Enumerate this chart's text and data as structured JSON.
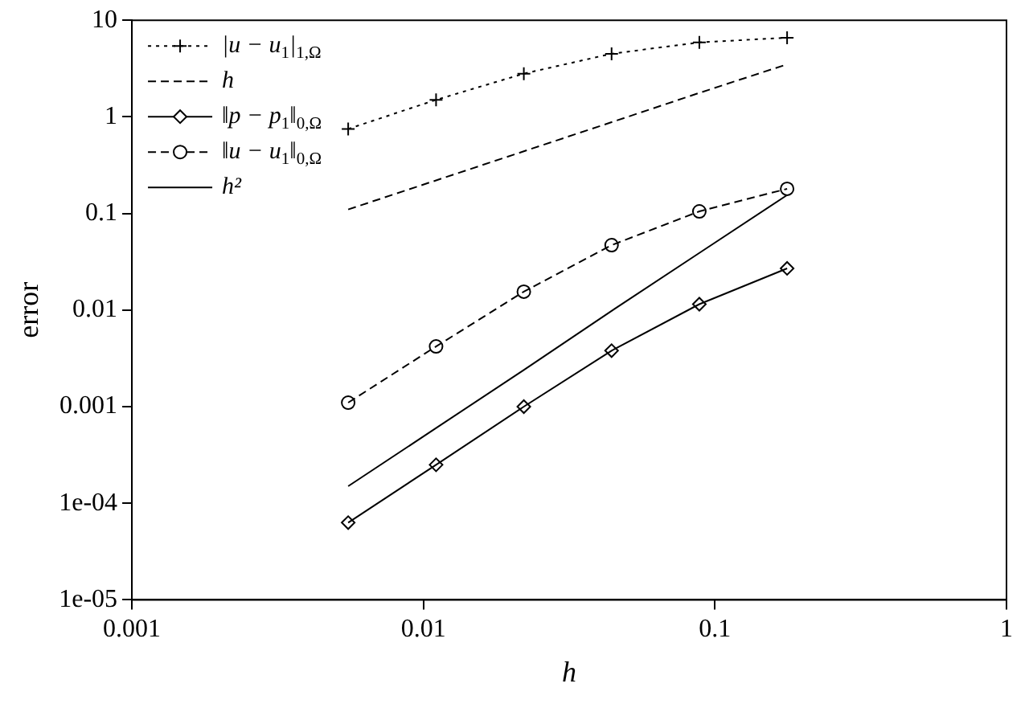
{
  "chart_data": {
    "type": "line",
    "xlabel": "h",
    "ylabel": "error",
    "log": "xy",
    "grid": false,
    "legend": "top left",
    "x": [
      0.00552,
      0.01105,
      0.0221,
      0.0442,
      0.0884,
      0.1768
    ],
    "xlim": [
      0.001,
      1
    ],
    "xticks": [
      0.001,
      0.01,
      0.1,
      1
    ],
    "ylim": [
      1e-05,
      10
    ],
    "yticks": [
      {
        "value": 1e-05,
        "label": "1e-05"
      },
      {
        "value": 0.0001,
        "label": "1e-04"
      },
      0.001,
      0.01,
      0.1,
      1,
      10
    ],
    "series": [
      {
        "name": "|u − u$_{1}$|$_{1,Ω}$",
        "color": "#000000",
        "values": [
          0.75,
          1.5,
          2.8,
          4.5,
          5.9,
          6.6
        ],
        "marker": "cross",
        "line_style": "dotted"
      },
      {
        "name": "h",
        "color": "#000000",
        "values": [
          0.11,
          0.22,
          0.44,
          0.88,
          1.77,
          3.5
        ],
        "marker": "none",
        "line_style": "dashed"
      },
      {
        "name": "‖p − p$_{1}$‖$_{0,Ω}$",
        "color": "#000000",
        "values": [
          6.3e-05,
          0.00025,
          0.001,
          0.0038,
          0.0115,
          0.027
        ],
        "marker": "diamond",
        "line_style": "solid"
      },
      {
        "name": "‖u − u$_{1}$‖$_{0,Ω}$",
        "color": "#000000",
        "values": [
          0.0011,
          0.0042,
          0.0155,
          0.047,
          0.105,
          0.18
        ],
        "marker": "circle",
        "line_style": "dashed"
      },
      {
        "name": "h²",
        "color": "#000000",
        "values": [
          0.00015,
          0.0006,
          0.0024,
          0.0098,
          0.039,
          0.155
        ],
        "marker": "none",
        "line_style": "solid"
      }
    ]
  }
}
